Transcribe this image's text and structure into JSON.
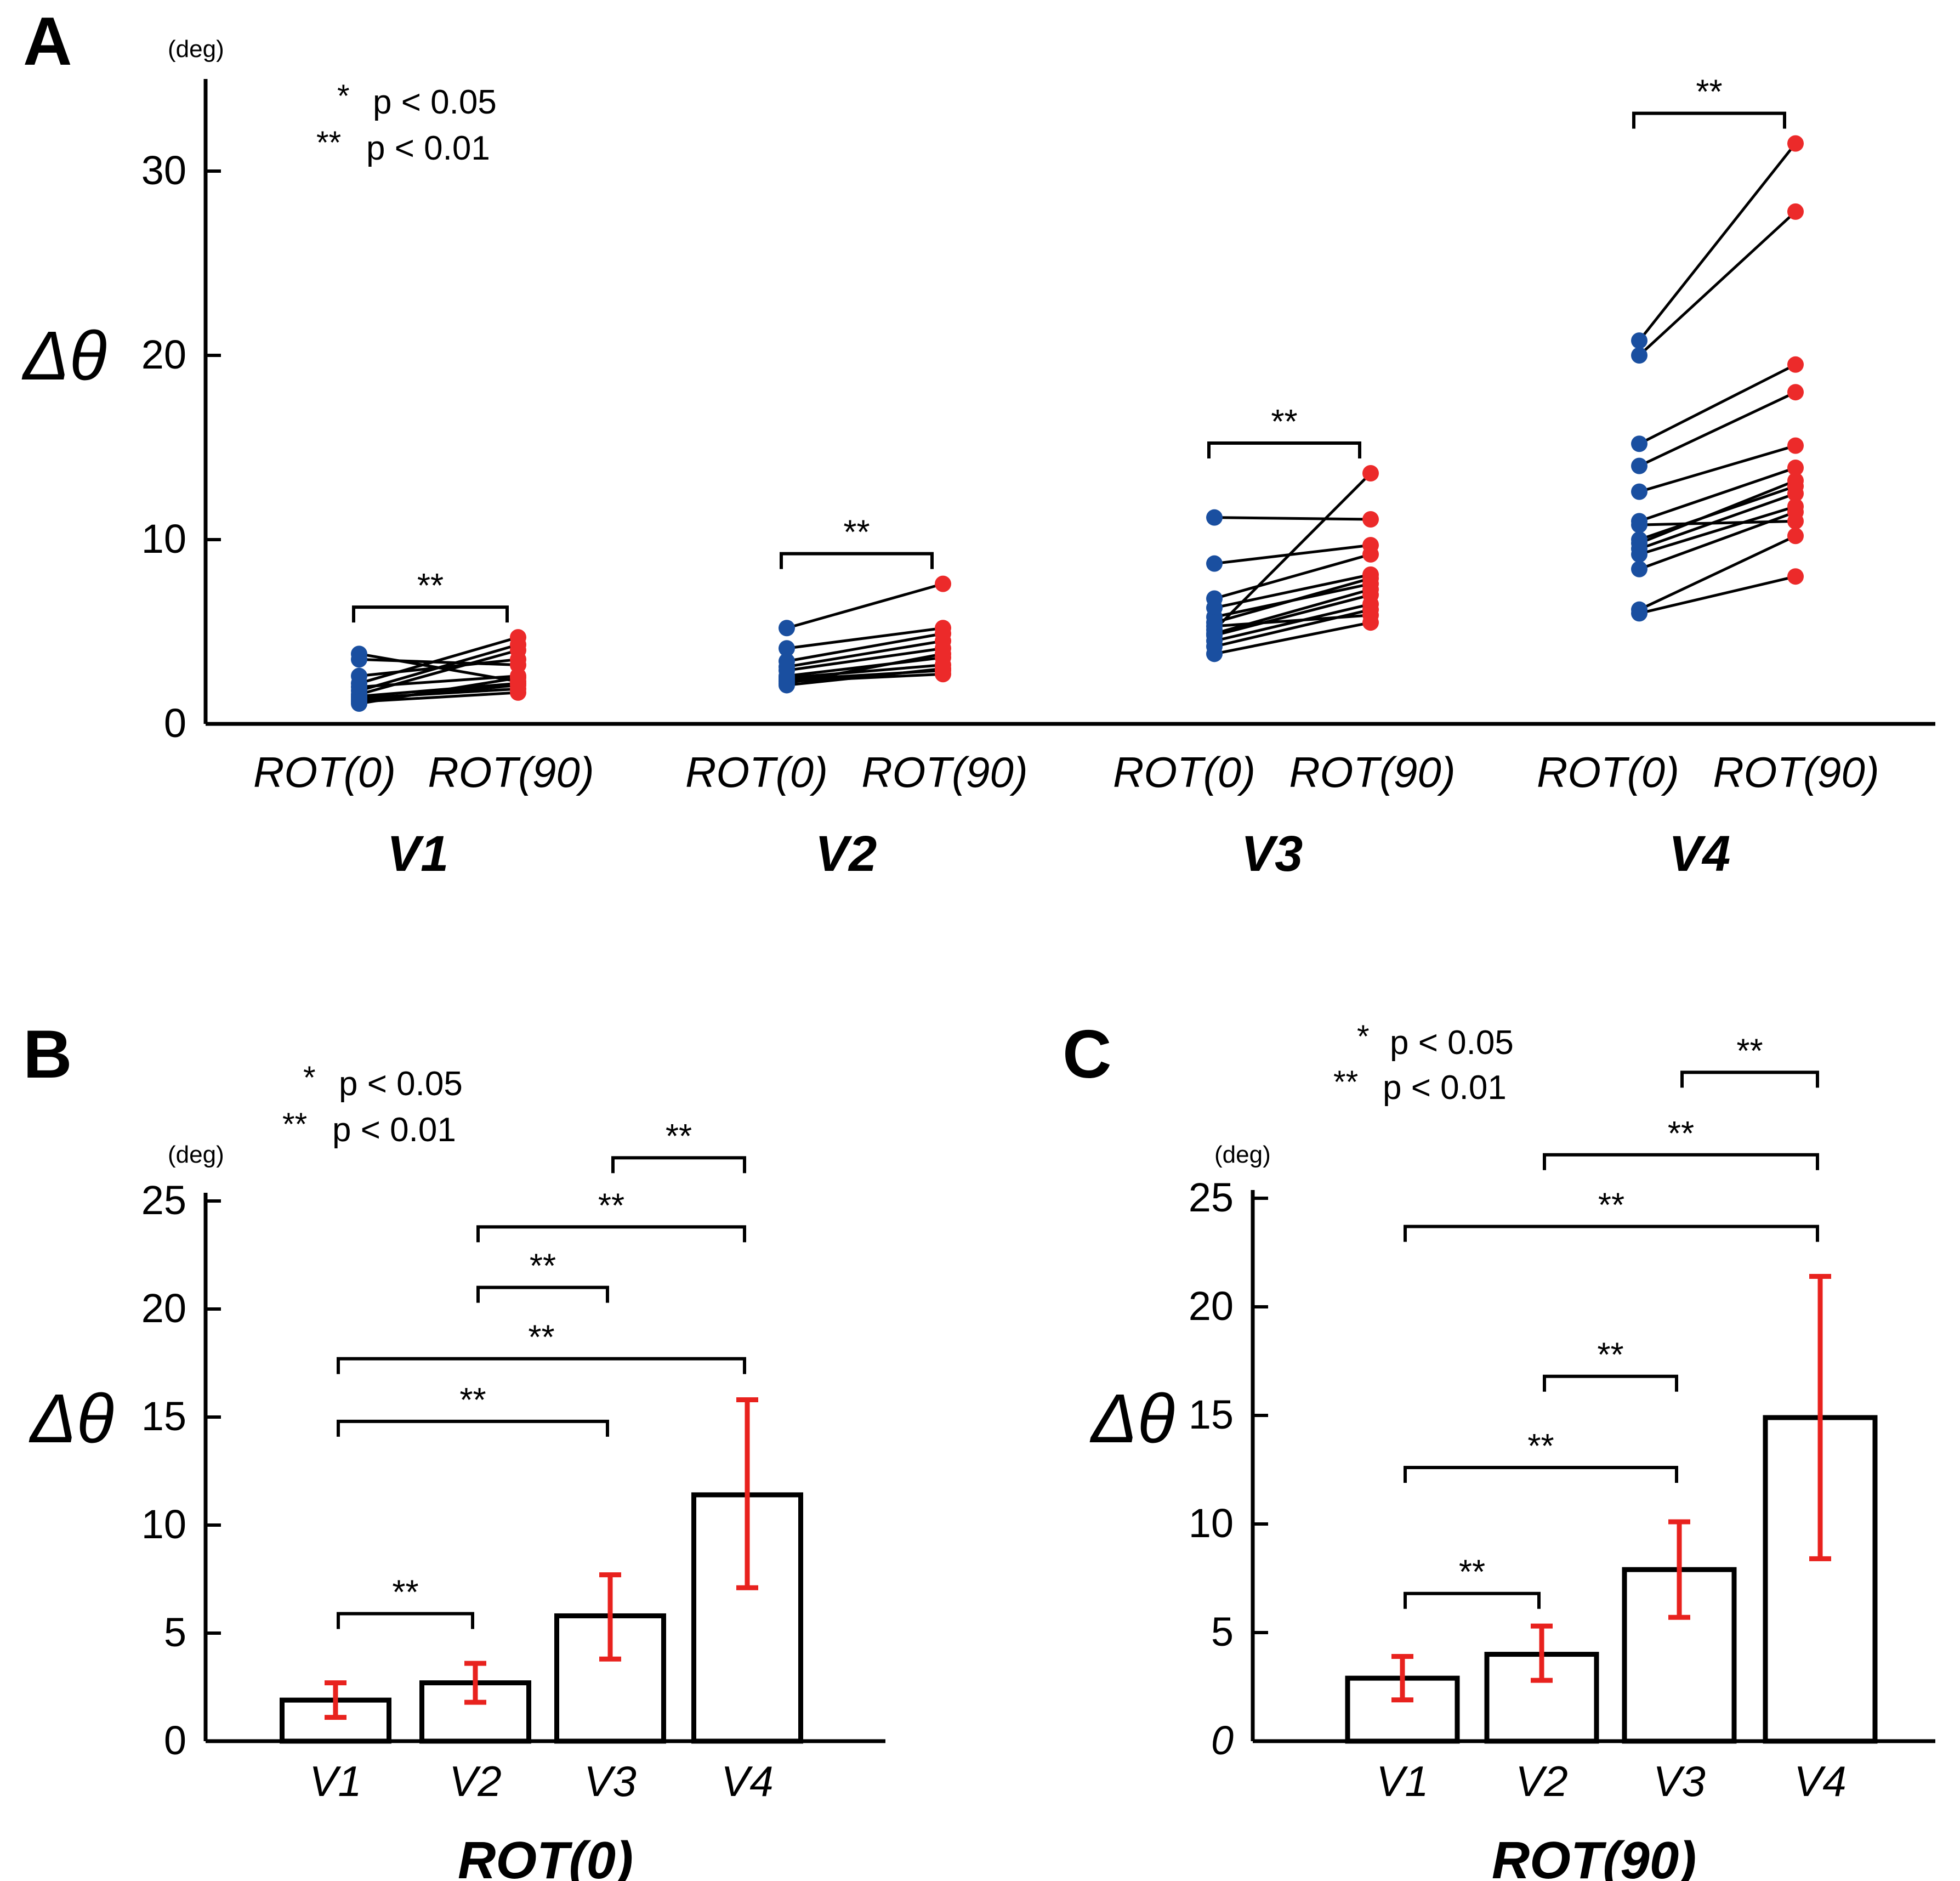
{
  "significance_legend": {
    "single": "*",
    "single_text": "p < 0.05",
    "double": "**",
    "double_text": "p < 0.01"
  },
  "unit": "(deg)",
  "ylabel": "Δθ",
  "chart_data": [
    {
      "panel": "A",
      "type": "scatter",
      "title": "",
      "ylabel": "Δθ",
      "unit": "(deg)",
      "ylim": [
        0,
        35
      ],
      "yticks": [
        0,
        10,
        20,
        30
      ],
      "conditions": [
        "ROT(0)",
        "ROT(90)"
      ],
      "significance": "**",
      "groups": [
        {
          "name": "V1",
          "pairs": [
            [
              3.8,
              2.3
            ],
            [
              3.5,
              3.2
            ],
            [
              2.6,
              3.5
            ],
            [
              2.2,
              4.7
            ],
            [
              2.0,
              2.6
            ],
            [
              1.8,
              4.3
            ],
            [
              1.6,
              4.0
            ],
            [
              1.5,
              2.2
            ],
            [
              1.4,
              1.9
            ],
            [
              1.3,
              2.1
            ],
            [
              1.2,
              1.7
            ],
            [
              1.1,
              2.5
            ]
          ]
        },
        {
          "name": "V2",
          "pairs": [
            [
              5.2,
              7.6
            ],
            [
              4.1,
              5.2
            ],
            [
              3.4,
              4.9
            ],
            [
              3.1,
              4.5
            ],
            [
              2.9,
              4.1
            ],
            [
              2.6,
              3.6
            ],
            [
              2.5,
              3.2
            ],
            [
              2.4,
              2.9
            ],
            [
              2.3,
              2.7
            ],
            [
              2.2,
              3.8
            ],
            [
              2.1,
              3.0
            ]
          ]
        },
        {
          "name": "V3",
          "pairs": [
            [
              11.2,
              11.1
            ],
            [
              8.7,
              9.7
            ],
            [
              6.8,
              9.2
            ],
            [
              6.3,
              8.1
            ],
            [
              5.8,
              7.6
            ],
            [
              5.5,
              7.9
            ],
            [
              5.1,
              13.6
            ],
            [
              4.8,
              7.0
            ],
            [
              4.5,
              6.5
            ],
            [
              4.2,
              6.2
            ],
            [
              3.8,
              5.5
            ],
            [
              4.9,
              7.3
            ],
            [
              5.3,
              5.9
            ]
          ]
        },
        {
          "name": "V4",
          "pairs": [
            [
              20.8,
              31.5
            ],
            [
              20.0,
              27.8
            ],
            [
              15.2,
              19.5
            ],
            [
              14.0,
              18.0
            ],
            [
              12.6,
              15.1
            ],
            [
              11.0,
              13.9
            ],
            [
              10.8,
              11.0
            ],
            [
              9.8,
              13.2
            ],
            [
              9.5,
              12.5
            ],
            [
              9.2,
              11.8
            ],
            [
              8.4,
              11.5
            ],
            [
              6.2,
              10.2
            ],
            [
              6.0,
              8.0
            ],
            [
              10.0,
              12.9
            ]
          ]
        }
      ]
    },
    {
      "panel": "B",
      "type": "bar",
      "title": "ROT(0)",
      "xlabel": "ROT(0)",
      "ylabel": "Δθ",
      "unit": "(deg)",
      "ylim": [
        0,
        25
      ],
      "yticks": [
        0,
        5,
        10,
        15,
        20,
        25
      ],
      "categories": [
        "V1",
        "V2",
        "V3",
        "V4"
      ],
      "values": [
        1.9,
        2.7,
        5.8,
        11.4
      ],
      "error_low": [
        1.1,
        1.8,
        3.8,
        7.1
      ],
      "error_high": [
        2.7,
        3.6,
        7.7,
        15.8
      ],
      "comparisons": [
        {
          "from": "V3",
          "to": "V4",
          "label": "**",
          "y": 27.0
        },
        {
          "from": "V2",
          "to": "V4",
          "label": "**",
          "y": 23.8
        },
        {
          "from": "V2",
          "to": "V3",
          "label": "**",
          "y": 21.0
        },
        {
          "from": "V1",
          "to": "V4",
          "label": "**",
          "y": 17.7
        },
        {
          "from": "V1",
          "to": "V3",
          "label": "**",
          "y": 14.8
        },
        {
          "from": "V1",
          "to": "V2",
          "label": "**",
          "y": 5.9
        }
      ]
    },
    {
      "panel": "C",
      "type": "bar",
      "title": "ROT(90)",
      "xlabel": "ROT(90)",
      "ylabel": "Δθ",
      "unit": "(deg)",
      "ylim": [
        0,
        25
      ],
      "yticks": [
        0,
        5,
        10,
        15,
        20,
        25
      ],
      "categories": [
        "V1",
        "V2",
        "V3",
        "V4"
      ],
      "values": [
        2.9,
        4.0,
        7.9,
        14.9
      ],
      "error_low": [
        1.9,
        2.8,
        5.7,
        8.4
      ],
      "error_high": [
        3.9,
        5.3,
        10.1,
        21.4
      ],
      "comparisons": [
        {
          "from": "V3",
          "to": "V4",
          "label": "**",
          "y": 30.8
        },
        {
          "from": "V2",
          "to": "V4",
          "label": "**",
          "y": 27.0
        },
        {
          "from": "V1",
          "to": "V4",
          "label": "**",
          "y": 23.7
        },
        {
          "from": "V2",
          "to": "V3",
          "label": "**",
          "y": 16.8
        },
        {
          "from": "V1",
          "to": "V3",
          "label": "**",
          "y": 12.6
        },
        {
          "from": "V1",
          "to": "V2",
          "label": "**",
          "y": 6.8
        }
      ]
    }
  ]
}
